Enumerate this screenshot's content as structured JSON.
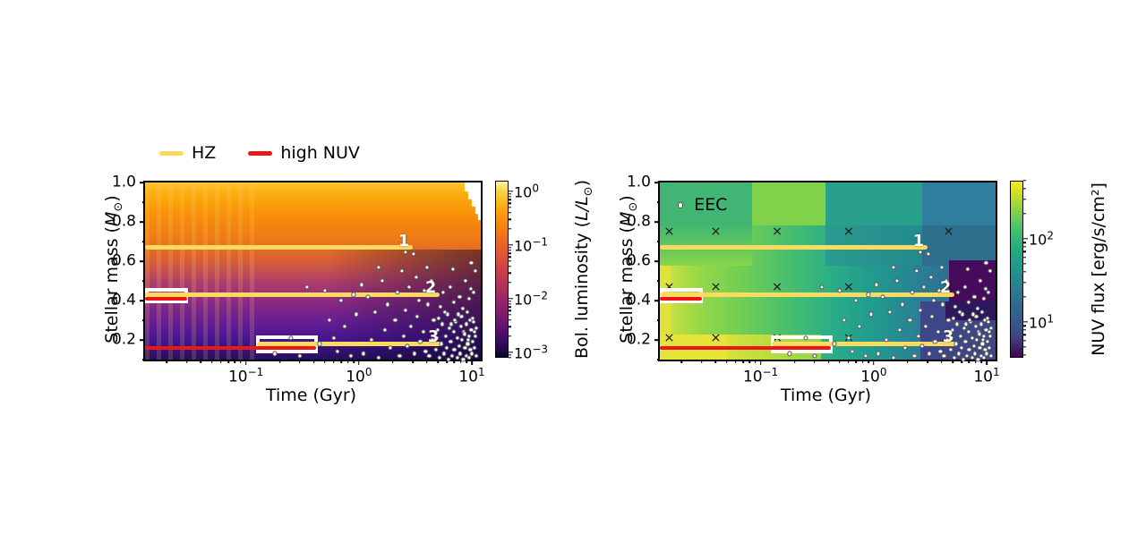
{
  "legend": {
    "items": [
      {
        "label": "HZ"
      },
      {
        "label": "high NUV"
      }
    ]
  },
  "axes": {
    "xlabel": "Time (Gyr)",
    "ylabel_pre": "Stellar mass (",
    "ylabel_sym": "M",
    "ylabel_sub": "⊙",
    "ylabel_post": ")"
  },
  "right_inset": {
    "label": "EEC"
  },
  "colors": {
    "hz_yellow": "#fada5f",
    "nuv_red": "#ed1515",
    "rect_stroke": "#ffffff",
    "x_marker": "#1a1a1a",
    "dot_fill": "#ffffff",
    "dot_edge": "#555555",
    "track_label": "#ffffff"
  },
  "chart_data": {
    "type": "heatmap",
    "x_scale": "log",
    "marker_glyph": "×",
    "panels": [
      {
        "key": "left",
        "cmap": "inferno",
        "xlim": [
          0.0128,
          12
        ],
        "ylim": [
          0.1,
          1.0
        ],
        "xtick_exps": [
          -1,
          0,
          1
        ],
        "yticks": [
          [
            1.0,
            "1.0"
          ],
          [
            0.8,
            "0.8"
          ],
          [
            0.6,
            "0.6"
          ],
          [
            0.4,
            "0.4"
          ],
          [
            0.2,
            "0.2"
          ]
        ],
        "yminor": [
          0.9,
          0.7,
          0.5,
          0.3,
          0.1
        ],
        "has_x_markers": false,
        "colorbar": {
          "label_pre": "Bol. luminosity (",
          "label_sym": "L/L",
          "label_sub": "⊙",
          "label_post": ")",
          "exp_top": 0.2,
          "exp_bottom": -3.1,
          "tick_exps": [
            0,
            -1,
            -2,
            -3
          ]
        }
      },
      {
        "key": "right",
        "cmap": "viridis",
        "xlim": [
          0.0128,
          12
        ],
        "ylim": [
          0.1,
          1.0
        ],
        "xtick_exps": [
          -1,
          0,
          1
        ],
        "yticks": [
          [
            1.0,
            "1.0"
          ],
          [
            0.8,
            "0.8"
          ],
          [
            0.6,
            "0.6"
          ],
          [
            0.4,
            "0.4"
          ],
          [
            0.2,
            "0.2"
          ]
        ],
        "yminor": [
          0.9,
          0.7,
          0.5,
          0.3,
          0.1
        ],
        "has_x_markers": true,
        "colorbar": {
          "label_plain": "NUV flux [erg/s/cm²]",
          "exp_top": 2.7,
          "exp_bottom": 0.57,
          "tick_exps": [
            2,
            1
          ]
        }
      }
    ],
    "tracks": [
      {
        "label": "1",
        "hz_mass": 0.67,
        "hz_span": [
          0.0128,
          3.0
        ]
      },
      {
        "label": "2",
        "hz_mass": 0.43,
        "hz_span": [
          0.0128,
          5.2
        ],
        "red_mass": 0.41,
        "red_span": [
          0.0128,
          0.03
        ],
        "rect": {
          "t": [
            0.0128,
            0.031
          ],
          "mass": [
            0.385,
            0.465
          ]
        }
      },
      {
        "label": "3",
        "hz_mass": 0.18,
        "hz_span": [
          0.125,
          5.5
        ],
        "red_mass": 0.16,
        "red_span": [
          0.0128,
          0.42
        ],
        "rect": {
          "t": [
            0.122,
            0.43
          ],
          "mass": [
            0.13,
            0.225
          ]
        }
      }
    ],
    "x_markers": {
      "times": [
        0.0155,
        0.04,
        0.14,
        0.6,
        4.6
      ],
      "masses": [
        0.75,
        0.47,
        0.21
      ]
    },
    "eec_inset_point": [
      0.019,
      0.877
    ],
    "eec_points": [
      [
        4.2,
        0.12
      ],
      [
        4.5,
        0.2
      ],
      [
        4.8,
        0.15
      ],
      [
        5.0,
        0.25
      ],
      [
        5.2,
        0.11
      ],
      [
        5.4,
        0.18
      ],
      [
        5.5,
        0.28
      ],
      [
        5.7,
        0.13
      ],
      [
        5.9,
        0.22
      ],
      [
        6.0,
        0.16
      ],
      [
        6.2,
        0.1
      ],
      [
        6.3,
        0.26
      ],
      [
        6.5,
        0.19
      ],
      [
        6.7,
        0.12
      ],
      [
        6.9,
        0.24
      ],
      [
        7.0,
        0.15
      ],
      [
        7.2,
        0.29
      ],
      [
        7.4,
        0.11
      ],
      [
        7.5,
        0.21
      ],
      [
        7.7,
        0.17
      ],
      [
        7.9,
        0.13
      ],
      [
        8.0,
        0.27
      ],
      [
        8.2,
        0.2
      ],
      [
        8.4,
        0.1
      ],
      [
        8.5,
        0.24
      ],
      [
        8.7,
        0.16
      ],
      [
        8.9,
        0.12
      ],
      [
        9.0,
        0.28
      ],
      [
        9.2,
        0.18
      ],
      [
        9.4,
        0.22
      ],
      [
        9.5,
        0.11
      ],
      [
        9.7,
        0.15
      ],
      [
        9.9,
        0.25
      ],
      [
        10.0,
        0.13
      ],
      [
        10.2,
        0.19
      ],
      [
        10.4,
        0.29
      ],
      [
        10.6,
        0.16
      ],
      [
        10.8,
        0.22
      ],
      [
        11.0,
        0.12
      ],
      [
        5.1,
        0.31
      ],
      [
        6.1,
        0.33
      ],
      [
        7.1,
        0.3
      ],
      [
        8.1,
        0.32
      ],
      [
        9.1,
        0.34
      ],
      [
        10.1,
        0.31
      ],
      [
        4.6,
        0.3
      ],
      [
        5.8,
        0.34
      ],
      [
        7.6,
        0.33
      ],
      [
        9.6,
        0.3
      ],
      [
        10.9,
        0.26
      ],
      [
        4.9,
        0.21
      ],
      [
        6.6,
        0.28
      ],
      [
        8.6,
        0.23
      ],
      [
        9.3,
        0.2
      ],
      [
        10.5,
        0.24
      ],
      [
        1.1,
        0.13
      ],
      [
        1.3,
        0.2
      ],
      [
        1.5,
        0.11
      ],
      [
        1.7,
        0.25
      ],
      [
        1.9,
        0.16
      ],
      [
        2.1,
        0.3
      ],
      [
        2.3,
        0.12
      ],
      [
        2.5,
        0.22
      ],
      [
        2.7,
        0.17
      ],
      [
        2.9,
        0.27
      ],
      [
        3.1,
        0.13
      ],
      [
        3.3,
        0.32
      ],
      [
        3.5,
        0.19
      ],
      [
        3.7,
        0.24
      ],
      [
        3.9,
        0.14
      ],
      [
        1.4,
        0.34
      ],
      [
        2.6,
        0.35
      ],
      [
        1.8,
        0.38
      ],
      [
        3.4,
        0.4
      ],
      [
        2.2,
        0.44
      ],
      [
        1.2,
        0.42
      ],
      [
        3.8,
        0.45
      ],
      [
        2.8,
        0.47
      ],
      [
        0.5,
        0.45
      ],
      [
        0.9,
        0.43
      ],
      [
        1.6,
        0.5
      ],
      [
        2.4,
        0.55
      ],
      [
        4.4,
        0.5
      ],
      [
        6.4,
        0.47
      ],
      [
        3.2,
        0.52
      ],
      [
        8.8,
        0.5
      ],
      [
        5.6,
        0.44
      ],
      [
        7.8,
        0.42
      ],
      [
        9.8,
        0.46
      ],
      [
        10.7,
        0.55
      ],
      [
        2.6,
        0.645
      ],
      [
        3.05,
        0.635
      ],
      [
        9.9,
        0.59
      ],
      [
        6.8,
        0.56
      ],
      [
        1.05,
        0.48
      ],
      [
        0.6,
        0.21
      ],
      [
        0.65,
        0.14
      ],
      [
        0.75,
        0.27
      ],
      [
        0.85,
        0.12
      ],
      [
        0.95,
        0.33
      ],
      [
        0.55,
        0.3
      ],
      [
        0.35,
        0.47
      ],
      [
        0.25,
        0.21
      ],
      [
        0.18,
        0.13
      ],
      [
        0.3,
        0.12
      ],
      [
        0.45,
        0.18
      ],
      [
        0.7,
        0.4
      ],
      [
        4.1,
        0.38
      ],
      [
        5.3,
        0.37
      ],
      [
        6.9,
        0.39
      ],
      [
        8.3,
        0.36
      ],
      [
        9.45,
        0.41
      ],
      [
        10.3,
        0.44
      ],
      [
        4.0,
        0.57
      ],
      [
        1.5,
        0.57
      ]
    ]
  }
}
